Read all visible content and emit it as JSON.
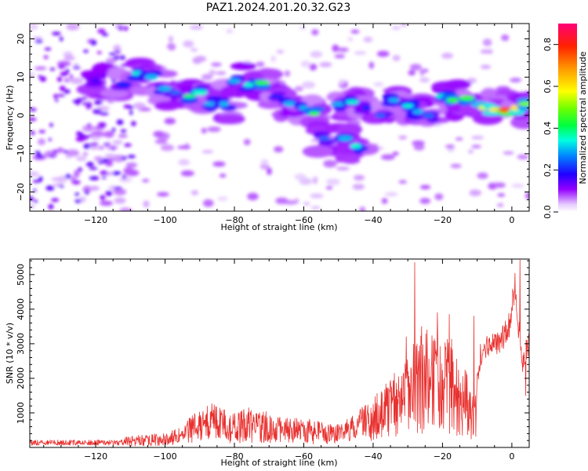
{
  "title": "PAZ1.2024.201.20.32.G23",
  "chart_data": [
    {
      "type": "heatmap",
      "xlabel": "Height of straight line (km)",
      "ylabel": "Frequency (Hz)",
      "xlim": [
        -139,
        5
      ],
      "ylim": [
        -25,
        24
      ],
      "xticks": [
        -120,
        -100,
        -80,
        -60,
        -40,
        -20,
        0
      ],
      "yticks": [
        -20,
        -10,
        0,
        10,
        20
      ],
      "colorbar": {
        "label": "Normalized spectral amplitude",
        "range": [
          0,
          0.9
        ],
        "ticks": [
          0.0,
          0.2,
          0.4,
          0.6,
          0.8
        ],
        "colormap": "hsv-rainbow"
      },
      "ridge": [
        [
          -120,
          9,
          0.15
        ],
        [
          -112,
          8,
          0.2
        ],
        [
          -108,
          11,
          0.35
        ],
        [
          -104,
          10,
          0.3
        ],
        [
          -100,
          7,
          0.3
        ],
        [
          -97,
          6,
          0.25
        ],
        [
          -93,
          5,
          0.4
        ],
        [
          -90,
          6,
          0.35
        ],
        [
          -87,
          3,
          0.3
        ],
        [
          -83,
          3,
          0.3
        ],
        [
          -80,
          9,
          0.3
        ],
        [
          -76,
          8,
          0.35
        ],
        [
          -72,
          8.5,
          0.45
        ],
        [
          -68,
          5,
          0.2
        ],
        [
          -64,
          3,
          0.3
        ],
        [
          -60,
          2,
          0.3
        ],
        [
          -57,
          0.5,
          0.45
        ],
        [
          -54,
          -6,
          0.25
        ],
        [
          -48,
          -6,
          0.3
        ],
        [
          -45,
          -8,
          0.35
        ],
        [
          -50,
          3,
          0.3
        ],
        [
          -46,
          3.5,
          0.35
        ],
        [
          -42,
          2,
          0.2
        ],
        [
          -38,
          0,
          0.25
        ],
        [
          -34,
          4,
          0.3
        ],
        [
          -30,
          2.5,
          0.35
        ],
        [
          -27,
          1,
          0.3
        ],
        [
          -24,
          0,
          0.25
        ],
        [
          -20,
          5,
          0.35
        ],
        [
          -17,
          4,
          0.45
        ],
        [
          -13,
          4.5,
          0.45
        ],
        [
          -8,
          2,
          0.55
        ],
        [
          -5,
          1.5,
          0.6
        ],
        [
          -2,
          1.5,
          0.75
        ],
        [
          1,
          2,
          0.6
        ],
        [
          4,
          3,
          0.5
        ]
      ]
    },
    {
      "type": "line",
      "xlabel": "Height of straight line (km)",
      "ylabel": "SNR (10 * v/v)",
      "xlim": [
        -139,
        5
      ],
      "ylim": [
        0,
        5450
      ],
      "xticks": [
        -120,
        -100,
        -80,
        -60,
        -40,
        -20,
        0
      ],
      "yticks": [
        1000,
        2000,
        3000,
        4000,
        5000
      ],
      "color": "#e8312f",
      "envelope": [
        [
          -139,
          150
        ],
        [
          -125,
          160
        ],
        [
          -115,
          220
        ],
        [
          -110,
          330
        ],
        [
          -105,
          380
        ],
        [
          -100,
          420
        ],
        [
          -95,
          600
        ],
        [
          -93,
          900
        ],
        [
          -90,
          1100
        ],
        [
          -87,
          1300
        ],
        [
          -84,
          1200
        ],
        [
          -80,
          1000
        ],
        [
          -76,
          1150
        ],
        [
          -72,
          1100
        ],
        [
          -68,
          900
        ],
        [
          -64,
          850
        ],
        [
          -60,
          850
        ],
        [
          -56,
          800
        ],
        [
          -52,
          700
        ],
        [
          -48,
          800
        ],
        [
          -44,
          1100
        ],
        [
          -40,
          1500
        ],
        [
          -36,
          2000
        ],
        [
          -32,
          2300
        ],
        [
          -29,
          3000
        ],
        [
          -27,
          3200
        ],
        [
          -25,
          3300
        ],
        [
          -23,
          3300
        ],
        [
          -21,
          3200
        ],
        [
          -19,
          3200
        ],
        [
          -17,
          3400
        ],
        [
          -15,
          2400
        ],
        [
          -13,
          2200
        ],
        [
          -11,
          1500
        ],
        [
          -9,
          2900
        ],
        [
          -7,
          3200
        ],
        [
          -5,
          3400
        ],
        [
          -3,
          3500
        ],
        [
          -1,
          3700
        ],
        [
          1,
          5000
        ],
        [
          3,
          2500
        ],
        [
          5,
          3400
        ]
      ],
      "peaks": [
        [
          -28,
          5350
        ],
        [
          -30.5,
          3200
        ],
        [
          -26,
          3500
        ],
        [
          -24.5,
          3400
        ],
        [
          -21.5,
          3900
        ],
        [
          -18,
          3850
        ],
        [
          -11,
          3800
        ],
        [
          2.3,
          5420
        ],
        [
          4,
          1500
        ]
      ]
    }
  ]
}
